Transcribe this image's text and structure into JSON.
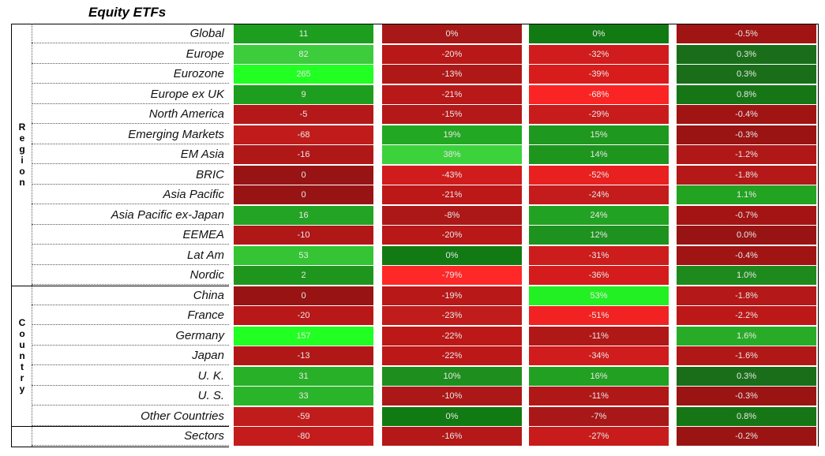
{
  "chart_data": {
    "type": "table",
    "title": "Equity ETFs",
    "groups": [
      {
        "label": "Region",
        "letters": [
          "R",
          "e",
          "g",
          "i",
          "o",
          "n"
        ],
        "start": 0,
        "count": 13
      },
      {
        "label": "Country",
        "letters": [
          "C",
          "o",
          "u",
          "n",
          "t",
          "r",
          "y"
        ],
        "start": 13,
        "count": 7
      }
    ],
    "rows": [
      {
        "label": "Global",
        "values": [
          "11",
          "0%",
          "0%",
          "-0.5%"
        ],
        "colors": [
          "#1e9e1e",
          "#a81818",
          "#127a12",
          "#a01414"
        ]
      },
      {
        "label": "Europe",
        "values": [
          "82",
          "-20%",
          "-32%",
          "0.3%"
        ],
        "colors": [
          "#3ccc3c",
          "#b81818",
          "#d01c1c",
          "#1a6e1a"
        ]
      },
      {
        "label": "Eurozone",
        "values": [
          "265",
          "-13%",
          "-39%",
          "0.3%"
        ],
        "colors": [
          "#22ff22",
          "#b01818",
          "#d81c1c",
          "#1a6e1a"
        ]
      },
      {
        "label": "Europe ex UK",
        "values": [
          "9",
          "-21%",
          "-68%",
          "0.8%"
        ],
        "colors": [
          "#1e9e1e",
          "#b81818",
          "#fa2424",
          "#167616"
        ]
      },
      {
        "label": "North America",
        "values": [
          "-5",
          "-15%",
          "-29%",
          "-0.4%"
        ],
        "colors": [
          "#b41818",
          "#b41818",
          "#c81c1c",
          "#a01414"
        ]
      },
      {
        "label": "Emerging Markets",
        "values": [
          "-68",
          "19%",
          "15%",
          "-0.3%"
        ],
        "colors": [
          "#c01c1c",
          "#22a822",
          "#1e981e",
          "#9a1414"
        ]
      },
      {
        "label": "EM Asia",
        "values": [
          "-16",
          "38%",
          "14%",
          "-1.2%"
        ],
        "colors": [
          "#b01818",
          "#3cd23c",
          "#1e961e",
          "#b01818"
        ]
      },
      {
        "label": "BRIC",
        "values": [
          "0",
          "-43%",
          "-52%",
          "-1.8%"
        ],
        "colors": [
          "#981414",
          "#d01c1c",
          "#e82020",
          "#b41818"
        ]
      },
      {
        "label": "Asia Pacific",
        "values": [
          "0",
          "-21%",
          "-24%",
          "1.1%"
        ],
        "colors": [
          "#981414",
          "#bc1818",
          "#c41c1c",
          "#22a422"
        ]
      },
      {
        "label": "Asia Pacific ex-Japan",
        "values": [
          "16",
          "-8%",
          "24%",
          "-0.7%"
        ],
        "colors": [
          "#24a424",
          "#ac1818",
          "#22a222",
          "#a41414"
        ]
      },
      {
        "label": "EEMEA",
        "values": [
          "-10",
          "-20%",
          "12%",
          "0.0%"
        ],
        "colors": [
          "#b01818",
          "#b81818",
          "#1e921e",
          "#981414"
        ]
      },
      {
        "label": "Lat Am",
        "values": [
          "53",
          "0%",
          "-31%",
          "-0.4%"
        ],
        "colors": [
          "#34c434",
          "#127a12",
          "#cc1c1c",
          "#a01414"
        ]
      },
      {
        "label": "Nordic",
        "values": [
          "2",
          "-79%",
          "-36%",
          "1.0%"
        ],
        "colors": [
          "#1e961e",
          "#ff2828",
          "#d41c1c",
          "#1e8a1e"
        ]
      },
      {
        "label": "China",
        "values": [
          "0",
          "-19%",
          "53%",
          "-1.8%"
        ],
        "colors": [
          "#981414",
          "#b81818",
          "#22f022",
          "#b41818"
        ]
      },
      {
        "label": "France",
        "values": [
          "-20",
          "-23%",
          "-51%",
          "-2.2%"
        ],
        "colors": [
          "#b81818",
          "#c01c1c",
          "#f22222",
          "#bc1818"
        ]
      },
      {
        "label": "Germany",
        "values": [
          "157",
          "-22%",
          "-11%",
          "1.6%"
        ],
        "colors": [
          "#22ff22",
          "#bc1818",
          "#b01818",
          "#28ac28"
        ]
      },
      {
        "label": "Japan",
        "values": [
          "-13",
          "-22%",
          "-34%",
          "-1.6%"
        ],
        "colors": [
          "#b01818",
          "#bc1818",
          "#d01c1c",
          "#b01818"
        ]
      },
      {
        "label": "U. K.",
        "values": [
          "31",
          "10%",
          "16%",
          "0.3%"
        ],
        "colors": [
          "#28b028",
          "#1e8e1e",
          "#22a022",
          "#1a6e1a"
        ]
      },
      {
        "label": "U. S.",
        "values": [
          "33",
          "-10%",
          "-11%",
          "-0.3%"
        ],
        "colors": [
          "#2ab42a",
          "#ac1818",
          "#b01818",
          "#9a1414"
        ]
      },
      {
        "label": "Other Countries",
        "values": [
          "-59",
          "0%",
          "-7%",
          "0.8%"
        ],
        "colors": [
          "#c01c1c",
          "#127a12",
          "#a81818",
          "#167616"
        ]
      },
      {
        "label": "Sectors",
        "values": [
          "-80",
          "-16%",
          "-27%",
          "-0.2%"
        ],
        "colors": [
          "#c41c1c",
          "#b41818",
          "#c81c1c",
          "#9a1414"
        ]
      }
    ]
  }
}
